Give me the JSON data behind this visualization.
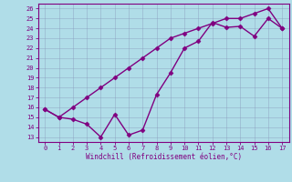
{
  "x": [
    0,
    1,
    2,
    3,
    4,
    5,
    6,
    7,
    8,
    9,
    10,
    11,
    12,
    13,
    14,
    15,
    16,
    17
  ],
  "line1_smooth": [
    15.8,
    15.0,
    16.0,
    17.0,
    18.0,
    19.0,
    20.0,
    21.0,
    22.0,
    23.0,
    23.5,
    24.0,
    24.5,
    25.0,
    25.0,
    25.5,
    26.0,
    24.0
  ],
  "line2_jagged": [
    15.8,
    15.0,
    14.8,
    14.3,
    13.0,
    15.3,
    13.2,
    13.7,
    17.3,
    19.5,
    22.0,
    22.7,
    24.6,
    24.1,
    24.2,
    23.2,
    25.0,
    24.0
  ],
  "color": "#800080",
  "bg_color": "#b0dde8",
  "grid_color": "#8899bb",
  "xlim": [
    -0.5,
    17.5
  ],
  "ylim": [
    12.5,
    26.5
  ],
  "yticks": [
    13,
    14,
    15,
    16,
    17,
    18,
    19,
    20,
    21,
    22,
    23,
    24,
    25,
    26
  ],
  "xticks": [
    0,
    1,
    2,
    3,
    4,
    5,
    6,
    7,
    8,
    9,
    10,
    11,
    12,
    13,
    14,
    15,
    16,
    17
  ],
  "xlabel": "Windchill (Refroidissement éolien,°C)",
  "markersize": 2.5,
  "linewidth": 1.0
}
